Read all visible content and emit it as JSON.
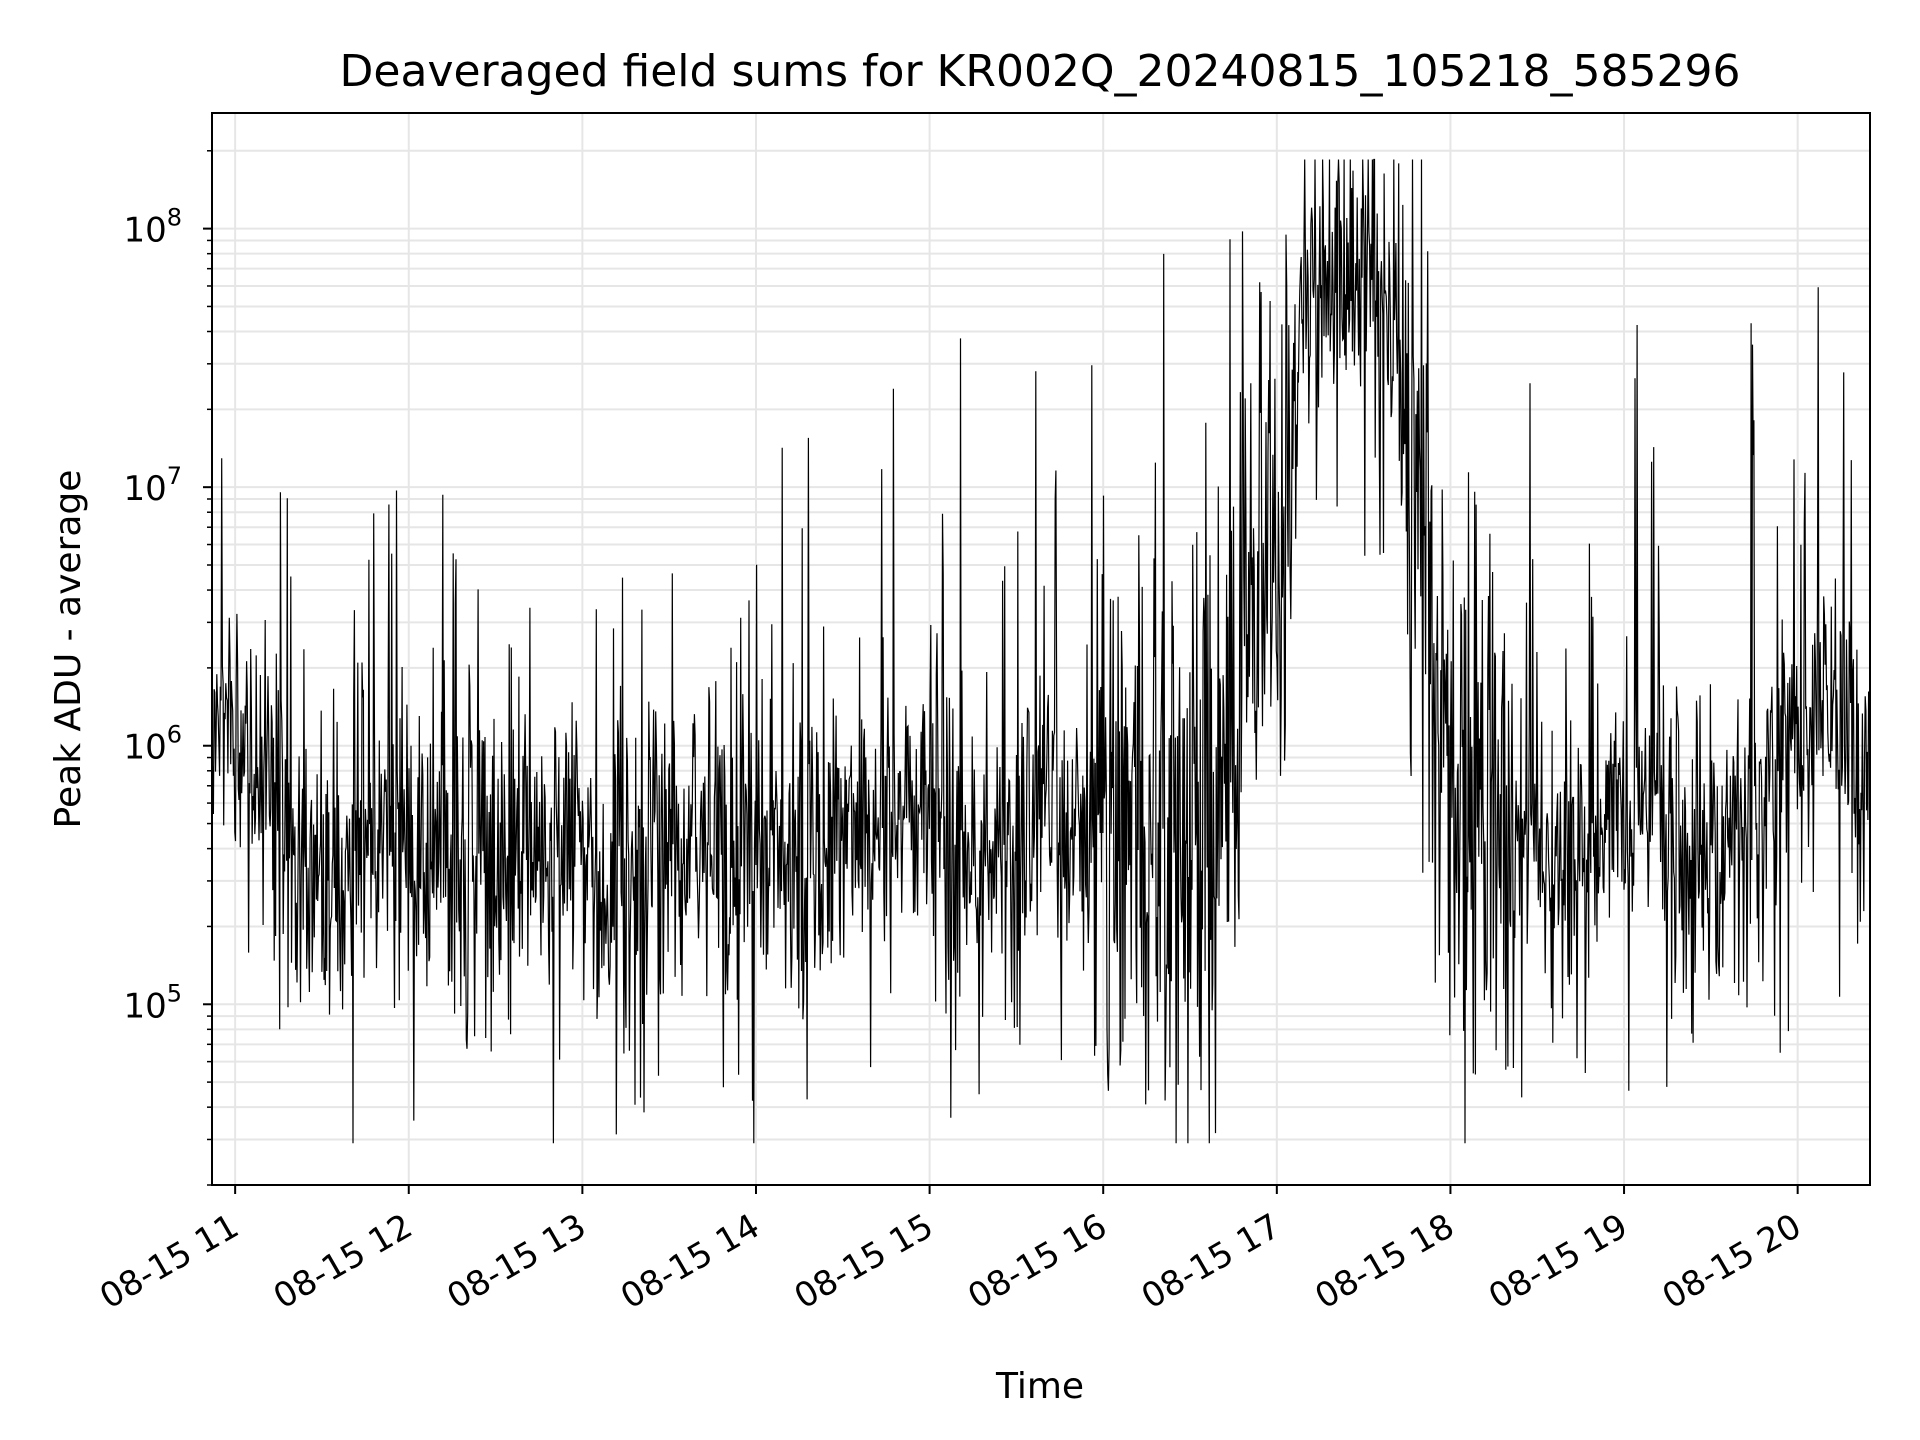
{
  "chart_data": {
    "type": "line",
    "title": "Deaveraged field sums for KR002Q_20240815_105218_585296",
    "xlabel": "Time",
    "ylabel": "Peak ADU - average",
    "yscale": "log",
    "ylim": [
      20000,
      280000000
    ],
    "xlim": [
      "08-15 10:52",
      "08-15 20:25"
    ],
    "grid": true,
    "line_color": "#000000",
    "grid_color": "#e6e6e6",
    "x_ticks": [
      {
        "label": "08-15 11",
        "value": "08-15 11:00"
      },
      {
        "label": "08-15 12",
        "value": "08-15 12:00"
      },
      {
        "label": "08-15 13",
        "value": "08-15 13:00"
      },
      {
        "label": "08-15 14",
        "value": "08-15 14:00"
      },
      {
        "label": "08-15 15",
        "value": "08-15 15:00"
      },
      {
        "label": "08-15 16",
        "value": "08-15 16:00"
      },
      {
        "label": "08-15 17",
        "value": "08-15 17:00"
      },
      {
        "label": "08-15 18",
        "value": "08-15 18:00"
      },
      {
        "label": "08-15 19",
        "value": "08-15 19:00"
      },
      {
        "label": "08-15 20",
        "value": "08-15 20:00"
      }
    ],
    "y_ticks": [
      {
        "base": "10",
        "exp": "5",
        "value": 100000
      },
      {
        "base": "10",
        "exp": "6",
        "value": 1000000
      },
      {
        "base": "10",
        "exp": "7",
        "value": 10000000
      },
      {
        "base": "10",
        "exp": "8",
        "value": 100000000
      }
    ],
    "series": [
      {
        "x": [
          "08-15 10:52",
          "08-15 10:56",
          "08-15 11:00",
          "08-15 11:05",
          "08-15 11:10",
          "08-15 11:15",
          "08-15 11:20",
          "08-15 11:25",
          "08-15 11:30",
          "08-15 11:35",
          "08-15 11:40",
          "08-15 11:45",
          "08-15 11:50",
          "08-15 11:55",
          "08-15 12:00",
          "08-15 12:05",
          "08-15 12:10",
          "08-15 12:15",
          "08-15 12:20",
          "08-15 12:25",
          "08-15 12:30",
          "08-15 12:35",
          "08-15 12:40",
          "08-15 12:45",
          "08-15 12:50",
          "08-15 12:55",
          "08-15 13:00",
          "08-15 13:05",
          "08-15 13:10",
          "08-15 13:15",
          "08-15 13:20",
          "08-15 13:25",
          "08-15 13:30",
          "08-15 13:40",
          "08-15 13:50",
          "08-15 14:00",
          "08-15 14:10",
          "08-15 14:20",
          "08-15 14:30",
          "08-15 14:40",
          "08-15 14:50",
          "08-15 15:00",
          "08-15 15:10",
          "08-15 15:20",
          "08-15 15:30",
          "08-15 15:40",
          "08-15 15:50",
          "08-15 16:00",
          "08-15 16:10",
          "08-15 16:20",
          "08-15 16:30",
          "08-15 16:40",
          "08-15 16:45",
          "08-15 16:50",
          "08-15 16:55",
          "08-15 17:00",
          "08-15 17:05",
          "08-15 17:10",
          "08-15 17:15",
          "08-15 17:20",
          "08-15 17:30",
          "08-15 17:40",
          "08-15 17:50",
          "08-15 17:55",
          "08-15 18:00",
          "08-15 18:05",
          "08-15 18:10",
          "08-15 18:15",
          "08-15 18:20",
          "08-15 18:30",
          "08-15 18:40",
          "08-15 18:50",
          "08-15 19:00",
          "08-15 19:10",
          "08-15 19:20",
          "08-15 19:30",
          "08-15 19:40",
          "08-15 19:50",
          "08-15 20:00",
          "08-15 20:05",
          "08-15 20:10",
          "08-15 20:15",
          "08-15 20:20",
          "08-15 20:25"
        ],
        "y": [
          1200000,
          1500000,
          1300000,
          1000000,
          800000,
          500000,
          350000,
          300000,
          250000,
          300000,
          400000,
          450000,
          500000,
          450000,
          400000,
          350000,
          450000,
          400000,
          350000,
          400000,
          300000,
          350000,
          400000,
          350000,
          300000,
          450000,
          350000,
          250000,
          200000,
          300000,
          300000,
          450000,
          400000,
          450000,
          400000,
          350000,
          400000,
          450000,
          500000,
          500000,
          550000,
          600000,
          450000,
          400000,
          450000,
          500000,
          500000,
          550000,
          500000,
          450000,
          500000,
          700000,
          1200000,
          3000000,
          8000000,
          5000000,
          15000000,
          60000000,
          80000000,
          70000000,
          60000000,
          50000000,
          8000000,
          1000000,
          700000,
          600000,
          500000,
          450000,
          400000,
          400000,
          450000,
          500000,
          600000,
          550000,
          450000,
          400000,
          500000,
          600000,
          1000000,
          1200000,
          1300000,
          1200000,
          1100000,
          900000
        ]
      }
    ]
  }
}
